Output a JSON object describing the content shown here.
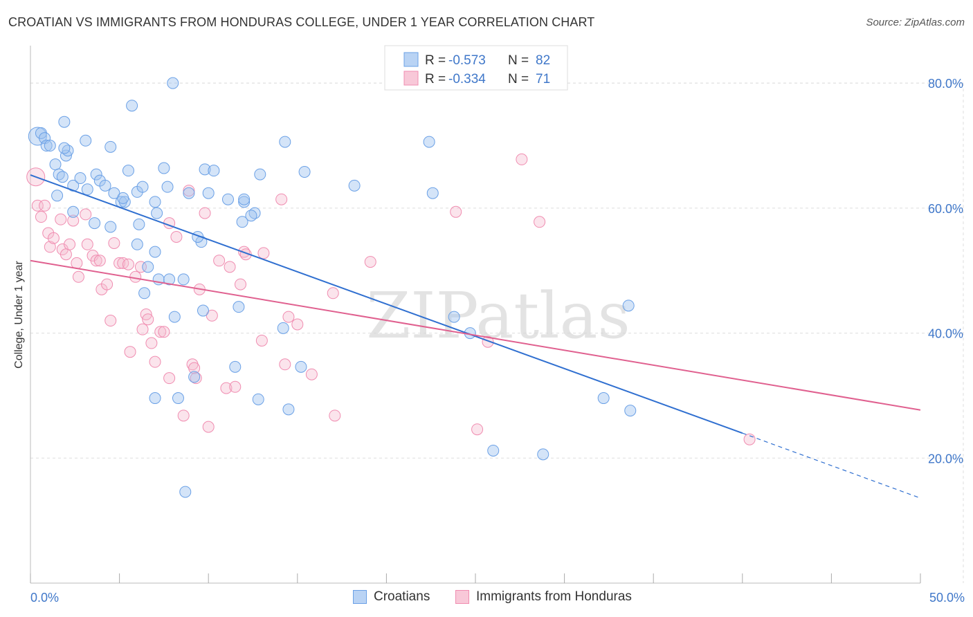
{
  "title": "CROATIAN VS IMMIGRANTS FROM HONDURAS COLLEGE, UNDER 1 YEAR CORRELATION CHART",
  "source": "Source: ZipAtlas.com",
  "watermark": "ZIPatlas",
  "legend": {
    "rows": [
      {
        "r_label": "R =",
        "r_value": "-0.573",
        "n_label": "N =",
        "n_value": "82"
      },
      {
        "r_label": "R =",
        "r_value": "-0.334",
        "n_label": "N =",
        "n_value": "71"
      }
    ]
  },
  "bottom_legend": [
    "Croatians",
    "Immigrants from Honduras"
  ],
  "chart_data": {
    "type": "scatter",
    "title": "CROATIAN VS IMMIGRANTS FROM HONDURAS COLLEGE, UNDER 1 YEAR CORRELATION CHART",
    "xlabel": "",
    "ylabel": "College, Under 1 year",
    "xlim": [
      0,
      50
    ],
    "ylim": [
      0,
      85
    ],
    "x_tick_labels": [
      "0.0%",
      "50.0%"
    ],
    "y_ticks": [
      20,
      40,
      60,
      80
    ],
    "y_tick_labels": [
      "20.0%",
      "40.0%",
      "60.0%",
      "80.0%"
    ],
    "grid": true,
    "legend_position": "top-center",
    "colors": {
      "Croatians": "#6aa0e6",
      "Immigrants from Honduras": "#f08cb0",
      "blue_line": "#2f6fd0",
      "pink_line": "#e0608f"
    },
    "series": [
      {
        "name": "Croatians",
        "r": -0.573,
        "n": 82,
        "trend": {
          "x0": 0,
          "y0": 65.3,
          "x1": 40,
          "y1": 24.0,
          "dash_to_x": 50,
          "dash_to_y": 13.6
        },
        "points": [
          [
            0.4,
            71.5
          ],
          [
            0.6,
            72.0
          ],
          [
            0.8,
            71.2
          ],
          [
            0.9,
            70.0
          ],
          [
            1.1,
            70.0
          ],
          [
            1.4,
            67.0
          ],
          [
            1.6,
            65.4
          ],
          [
            1.8,
            65.0
          ],
          [
            1.9,
            73.8
          ],
          [
            2.0,
            68.4
          ],
          [
            2.1,
            69.2
          ],
          [
            2.4,
            63.6
          ],
          [
            2.8,
            64.8
          ],
          [
            3.1,
            70.8
          ],
          [
            3.2,
            63.0
          ],
          [
            3.7,
            65.4
          ],
          [
            3.9,
            64.4
          ],
          [
            4.2,
            63.6
          ],
          [
            4.5,
            69.8
          ],
          [
            4.7,
            62.4
          ],
          [
            5.1,
            61.0
          ],
          [
            5.3,
            61.0
          ],
          [
            5.5,
            66.0
          ],
          [
            5.7,
            76.4
          ],
          [
            6.0,
            62.6
          ],
          [
            6.3,
            63.4
          ],
          [
            7.0,
            61.0
          ],
          [
            7.5,
            66.4
          ],
          [
            7.7,
            63.4
          ],
          [
            8.0,
            80.0
          ],
          [
            8.9,
            62.4
          ],
          [
            9.8,
            66.2
          ],
          [
            10.3,
            66.0
          ],
          [
            11.1,
            61.4
          ],
          [
            12.0,
            61.0
          ],
          [
            12.6,
            59.2
          ],
          [
            12.9,
            65.4
          ],
          [
            14.3,
            70.6
          ],
          [
            15.4,
            65.8
          ],
          [
            18.2,
            63.6
          ],
          [
            22.4,
            70.6
          ],
          [
            22.6,
            62.4
          ],
          [
            1.5,
            62.0
          ],
          [
            2.4,
            59.4
          ],
          [
            3.6,
            57.6
          ],
          [
            4.5,
            57.0
          ],
          [
            6.1,
            57.4
          ],
          [
            7.1,
            59.2
          ],
          [
            9.6,
            54.6
          ],
          [
            6.0,
            54.2
          ],
          [
            7.0,
            53.0
          ],
          [
            6.6,
            50.6
          ],
          [
            7.2,
            48.6
          ],
          [
            7.8,
            48.6
          ],
          [
            8.6,
            48.6
          ],
          [
            6.4,
            46.4
          ],
          [
            8.1,
            42.6
          ],
          [
            9.7,
            43.6
          ],
          [
            11.7,
            44.2
          ],
          [
            14.2,
            40.8
          ],
          [
            15.2,
            34.6
          ],
          [
            11.5,
            34.6
          ],
          [
            9.2,
            33.0
          ],
          [
            7.0,
            29.6
          ],
          [
            8.3,
            29.6
          ],
          [
            12.8,
            29.4
          ],
          [
            14.5,
            27.8
          ],
          [
            23.8,
            42.6
          ],
          [
            24.7,
            40.0
          ],
          [
            33.6,
            44.4
          ],
          [
            32.2,
            29.6
          ],
          [
            33.7,
            27.6
          ],
          [
            26.0,
            21.2
          ],
          [
            28.8,
            20.6
          ],
          [
            8.7,
            14.6
          ],
          [
            11.9,
            57.8
          ],
          [
            12.4,
            58.8
          ],
          [
            12.0,
            61.4
          ],
          [
            5.2,
            61.6
          ],
          [
            10.0,
            62.4
          ],
          [
            9.4,
            55.4
          ],
          [
            1.9,
            69.6
          ]
        ]
      },
      {
        "name": "Immigrants from Honduras",
        "r": -0.334,
        "n": 71,
        "trend": {
          "x0": 0,
          "y0": 51.6,
          "x1": 50,
          "y1": 27.7
        },
        "points": [
          [
            0.3,
            65.0
          ],
          [
            0.4,
            60.4
          ],
          [
            0.6,
            58.6
          ],
          [
            0.8,
            60.4
          ],
          [
            1.0,
            56.0
          ],
          [
            1.1,
            53.8
          ],
          [
            1.3,
            55.2
          ],
          [
            1.7,
            58.2
          ],
          [
            1.8,
            53.4
          ],
          [
            2.0,
            52.6
          ],
          [
            2.2,
            54.2
          ],
          [
            2.4,
            58.0
          ],
          [
            2.6,
            51.2
          ],
          [
            2.7,
            49.0
          ],
          [
            3.1,
            59.0
          ],
          [
            3.2,
            54.2
          ],
          [
            3.5,
            52.4
          ],
          [
            3.7,
            51.6
          ],
          [
            3.9,
            51.6
          ],
          [
            4.0,
            47.0
          ],
          [
            4.3,
            47.8
          ],
          [
            4.5,
            42.0
          ],
          [
            4.7,
            54.4
          ],
          [
            5.0,
            51.2
          ],
          [
            5.2,
            51.2
          ],
          [
            5.5,
            51.0
          ],
          [
            5.6,
            37.0
          ],
          [
            5.9,
            49.0
          ],
          [
            6.2,
            50.6
          ],
          [
            6.3,
            40.6
          ],
          [
            6.5,
            43.0
          ],
          [
            6.6,
            42.2
          ],
          [
            6.8,
            38.4
          ],
          [
            7.0,
            35.4
          ],
          [
            7.3,
            40.2
          ],
          [
            7.5,
            40.2
          ],
          [
            7.8,
            32.8
          ],
          [
            7.8,
            57.6
          ],
          [
            8.2,
            55.4
          ],
          [
            8.6,
            26.8
          ],
          [
            8.9,
            62.8
          ],
          [
            9.1,
            35.0
          ],
          [
            9.2,
            34.4
          ],
          [
            9.3,
            32.8
          ],
          [
            9.5,
            47.0
          ],
          [
            9.8,
            59.2
          ],
          [
            10.0,
            25.0
          ],
          [
            10.2,
            42.8
          ],
          [
            10.6,
            51.6
          ],
          [
            11.0,
            31.2
          ],
          [
            11.2,
            50.6
          ],
          [
            11.5,
            31.4
          ],
          [
            11.8,
            47.8
          ],
          [
            12.0,
            53.0
          ],
          [
            12.1,
            52.6
          ],
          [
            13.1,
            52.8
          ],
          [
            13.0,
            38.8
          ],
          [
            14.1,
            61.4
          ],
          [
            14.3,
            35.0
          ],
          [
            14.5,
            42.6
          ],
          [
            15.0,
            41.4
          ],
          [
            15.8,
            33.4
          ],
          [
            17.0,
            46.4
          ],
          [
            17.1,
            26.8
          ],
          [
            19.1,
            51.4
          ],
          [
            23.9,
            59.4
          ],
          [
            25.1,
            24.6
          ],
          [
            25.7,
            38.6
          ],
          [
            27.6,
            67.8
          ],
          [
            28.6,
            57.8
          ],
          [
            40.4,
            23.0
          ]
        ]
      }
    ]
  }
}
